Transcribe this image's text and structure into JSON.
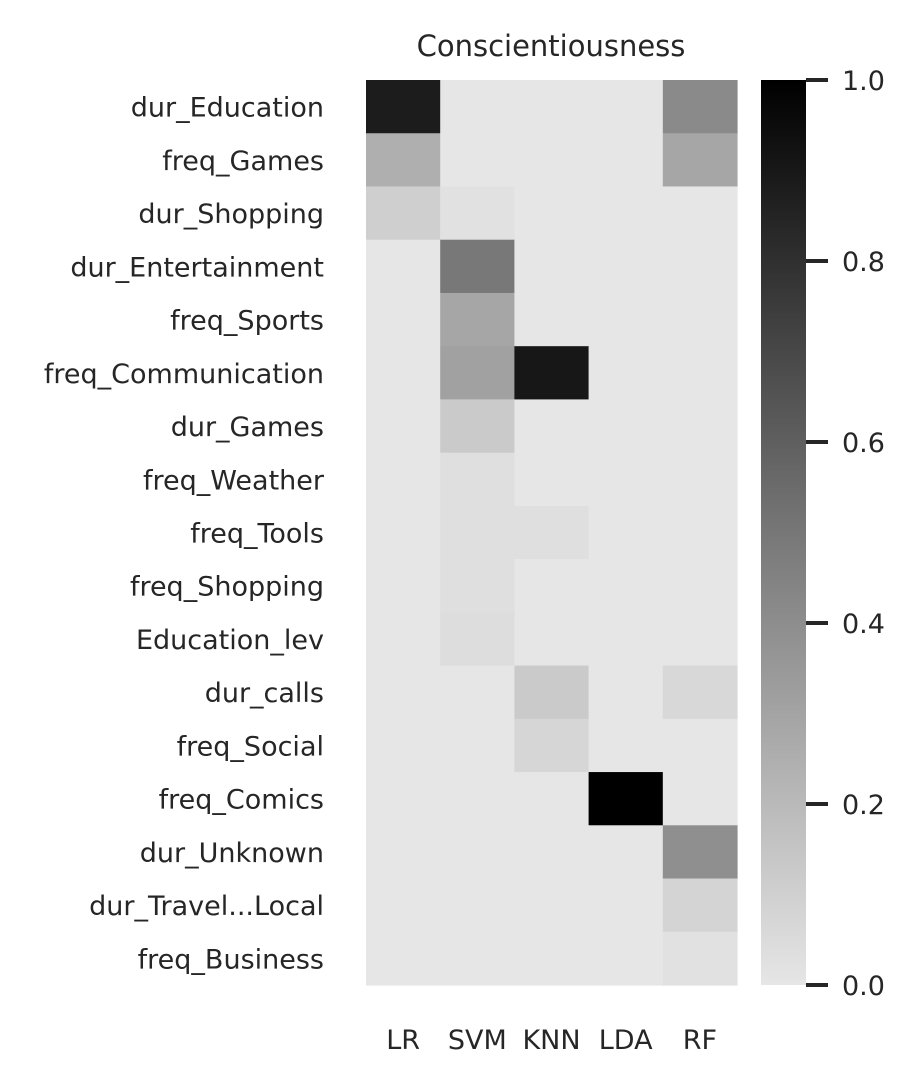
{
  "chart_data": {
    "type": "heatmap",
    "title": "Conscientiousness",
    "columns": [
      "LR",
      "SVM",
      "KNN",
      "LDA",
      "RF"
    ],
    "rows": [
      "dur_Education",
      "freq_Games",
      "dur_Shopping",
      "dur_Entertainment",
      "freq_Sports",
      "freq_Communication",
      "dur_Games",
      "freq_Weather",
      "freq_Tools",
      "freq_Shopping",
      "Education_lev",
      "dur_calls",
      "freq_Social",
      "freq_Comics",
      "dur_Unknown",
      "dur_Travel...Local",
      "freq_Business"
    ],
    "values": [
      [
        0.88,
        0.0,
        0.0,
        0.0,
        0.4
      ],
      [
        0.24,
        0.0,
        0.0,
        0.0,
        0.28
      ],
      [
        0.1,
        0.02,
        0.0,
        0.0,
        0.0
      ],
      [
        0.0,
        0.48,
        0.0,
        0.0,
        0.0
      ],
      [
        0.0,
        0.28,
        0.0,
        0.0,
        0.0
      ],
      [
        0.0,
        0.3,
        0.9,
        0.0,
        0.0
      ],
      [
        0.0,
        0.12,
        0.0,
        0.0,
        0.0
      ],
      [
        0.0,
        0.03,
        0.0,
        0.0,
        0.0
      ],
      [
        0.0,
        0.03,
        0.03,
        0.0,
        0.0
      ],
      [
        0.0,
        0.03,
        0.0,
        0.0,
        0.0
      ],
      [
        0.0,
        0.04,
        0.0,
        0.0,
        0.0
      ],
      [
        0.0,
        0.0,
        0.12,
        0.0,
        0.06
      ],
      [
        0.0,
        0.0,
        0.07,
        0.0,
        0.0
      ],
      [
        0.0,
        0.0,
        0.0,
        1.0,
        0.0
      ],
      [
        0.0,
        0.0,
        0.0,
        0.0,
        0.38
      ],
      [
        0.0,
        0.0,
        0.0,
        0.0,
        0.08
      ],
      [
        0.0,
        0.0,
        0.0,
        0.0,
        0.02
      ]
    ],
    "colorbar": {
      "range": [
        0.0,
        1.0
      ],
      "ticks": [
        "0.0",
        "0.2",
        "0.4",
        "0.6",
        "0.8",
        "1.0"
      ],
      "color_min": "#e6e6e6",
      "color_max": "#000000"
    },
    "grid": false
  }
}
